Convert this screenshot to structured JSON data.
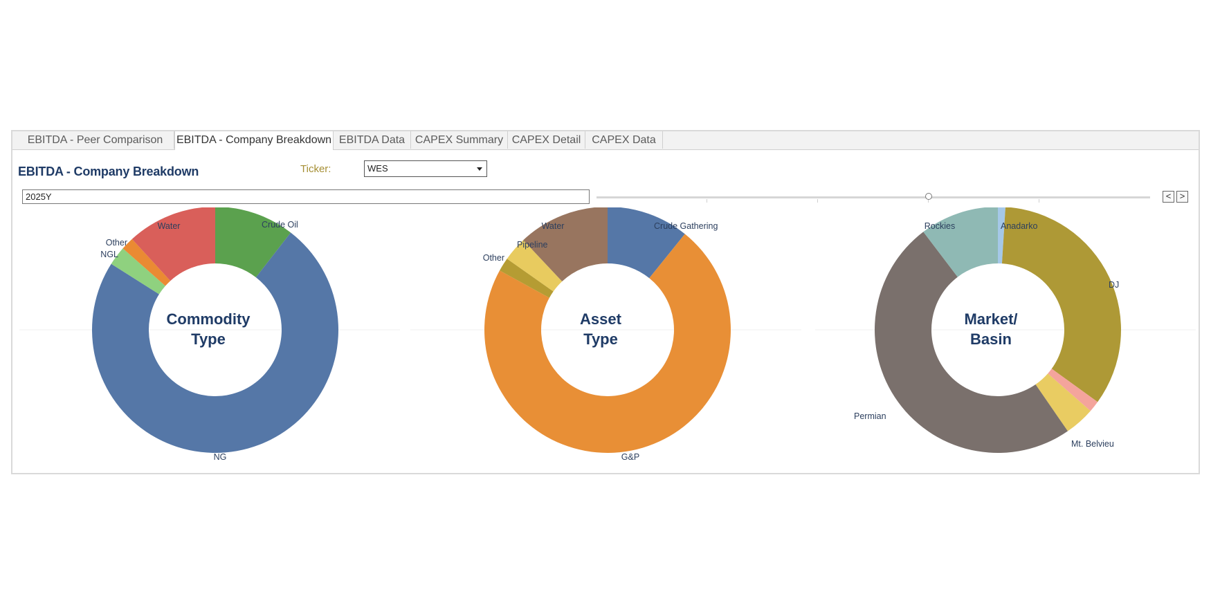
{
  "tabs": [
    {
      "label": "EBITDA - Peer Comparison",
      "active": false
    },
    {
      "label": "EBITDA - Company Breakdown",
      "active": true
    },
    {
      "label": "EBITDA Data",
      "active": false
    },
    {
      "label": "CAPEX Summary",
      "active": false
    },
    {
      "label": "CAPEX Detail",
      "active": false
    },
    {
      "label": "CAPEX Data",
      "active": false
    }
  ],
  "header": {
    "title": "EBITDA - Company Breakdown",
    "ticker_label": "Ticker:",
    "ticker_value": "WES"
  },
  "period": {
    "value": "2025Y",
    "prev_label": "<",
    "next_label": ">"
  },
  "chart_data": [
    {
      "type": "pie",
      "donut": true,
      "center_label": [
        "Commodity",
        "Type"
      ],
      "categories": [
        "Crude Oil",
        "NG",
        "NGL",
        "Other",
        "Water"
      ],
      "values": [
        10.5,
        73.5,
        2.5,
        1.7,
        11.8
      ],
      "colors": [
        "#5ba14e",
        "#5577a7",
        "#8fd17f",
        "#ea8a33",
        "#d95f5a"
      ]
    },
    {
      "type": "pie",
      "donut": true,
      "center_label": [
        "Asset",
        "Type"
      ],
      "categories": [
        "Crude Gathering",
        "G&P",
        "Other",
        "Pipeline",
        "Water"
      ],
      "values": [
        10.8,
        72.2,
        1.8,
        3.2,
        12.0
      ],
      "colors": [
        "#5577a7",
        "#e88f36",
        "#b59c33",
        "#e8cb5f",
        "#98755f"
      ]
    },
    {
      "type": "pie",
      "donut": true,
      "center_label": [
        "Market/",
        "Basin"
      ],
      "categories": [
        "Anadarko",
        "DJ",
        "Mt. Belvieu",
        "Permian",
        "Rockies"
      ],
      "values": [
        1.0,
        34.5,
        4.0,
        50.0,
        10.5
      ],
      "extra_slices": [
        {
          "after": "DJ",
          "value": 1.5,
          "color": "#f4a49c"
        }
      ],
      "colors": [
        "#a5c8e8",
        "#ae9936",
        "#e9cc62",
        "#7a706c",
        "#8fb9b4"
      ]
    }
  ]
}
